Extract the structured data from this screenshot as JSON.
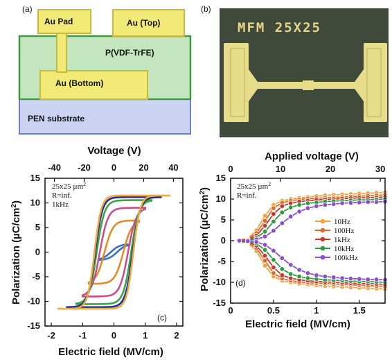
{
  "panels": {
    "a": {
      "letter": "(a)",
      "labels": {
        "au_pad": "Au Pad",
        "au_top": "Au (Top)",
        "pvdf": "P(VDF-TrFE)",
        "au_bottom": "Au (Bottom)",
        "pen": "PEN substrate"
      },
      "colors": {
        "gold": "#f2ea76",
        "gold_edge": "#c9b93a",
        "pvdf": "#c3e6be",
        "pvdf_edge": "#3f9a42",
        "pen": "#cbd3f0",
        "pen_edge": "#6b7fc9"
      }
    },
    "b": {
      "letter": "(b)",
      "photo_text": "MFM 25X25",
      "colors": {
        "background": "#3f4a3b",
        "electrode": "#e6dc8a"
      }
    },
    "c": {
      "letter": "(c)",
      "top_axis_title": "Voltage (V)",
      "top_ticks": [
        "-40",
        "-20",
        "0",
        "20",
        "40"
      ],
      "notes": [
        "25x25 µm",
        "R=inf.",
        "1kHz"
      ],
      "note_superscript": "2",
      "left_ticks": [
        "15",
        "10",
        "5",
        "0",
        "-5",
        "-10",
        "-15"
      ],
      "bottom_ticks": [
        "-2",
        "-1",
        "0",
        "1",
        "2"
      ]
    },
    "d": {
      "letter": "(d)",
      "top_axis_title": "Applied voltage (V)",
      "top_ticks": [
        "0",
        "10",
        "20",
        "30"
      ],
      "notes": [
        "25x25 µm",
        "R=inf."
      ],
      "note_superscript": "2",
      "left_ticks": [
        "15",
        "10",
        "5",
        "0",
        "-5",
        "-10",
        "-15"
      ],
      "bottom_ticks": [
        "0",
        "0.5",
        "1",
        "1.5"
      ]
    },
    "shared": {
      "ylabel": "Polarization (µC/cm",
      "ylabel_sup": "2",
      "ylabel_end": ")",
      "xlabel": "Electric field (MV/cm)"
    }
  },
  "chart_data": [
    {
      "type": "line",
      "panel": "c",
      "xlabel": "Electric field (MV/cm)",
      "ylabel": "Polarization (µC/cm2)",
      "top_axis_label": "Voltage (V)",
      "xlim": [
        -2.2,
        2.2
      ],
      "ylim": [
        -15,
        15
      ],
      "grid": false,
      "series": [
        {
          "amplitude": 0.5,
          "pr": 3.5,
          "ec": 0.1,
          "color": "#3a6fc4"
        },
        {
          "amplitude": 0.8,
          "pr": 7.5,
          "ec": 0.3,
          "color": "#e58a2a"
        },
        {
          "amplitude": 1.0,
          "pr": 9.0,
          "ec": 0.45,
          "color": "#c94f8a"
        },
        {
          "amplitude": 1.2,
          "pr": 9.8,
          "ec": 0.55,
          "color": "#3ea24a"
        },
        {
          "amplitude": 1.5,
          "pr": 10.2,
          "ec": 0.6,
          "color": "#1e2f8f"
        },
        {
          "amplitude": 1.8,
          "pr": 10.5,
          "ec": 0.62,
          "color": "#f0a840"
        }
      ]
    },
    {
      "type": "line",
      "panel": "d",
      "xlabel": "Electric field (MV/cm)",
      "ylabel": "Polarization (µC/cm2)",
      "top_axis_label": "Applied voltage (V)",
      "xlim": [
        0,
        1.8
      ],
      "ylim": [
        -15,
        15
      ],
      "grid": false,
      "legend_position": "right",
      "x": [
        0.1,
        0.2,
        0.3,
        0.4,
        0.5,
        0.6,
        0.7,
        0.8,
        0.9,
        1.0,
        1.1,
        1.2,
        1.3,
        1.4,
        1.5,
        1.6,
        1.7,
        1.8
      ],
      "series": [
        {
          "name": "10Hz",
          "color": "#f0a33a",
          "values": [
            0.2,
            0.5,
            2.5,
            6.0,
            8.6,
            9.6,
            10.0,
            10.3,
            10.5,
            10.7,
            10.9,
            11.0,
            11.1,
            11.2,
            11.3,
            11.4,
            11.5,
            11.6
          ]
        },
        {
          "name": "100Hz",
          "color": "#e06a2a",
          "values": [
            0.2,
            0.4,
            1.8,
            4.8,
            7.8,
            9.1,
            9.6,
            9.9,
            10.1,
            10.2,
            10.3,
            10.4,
            10.5,
            10.6,
            10.7,
            10.8,
            10.9,
            11.0
          ]
        },
        {
          "name": "1kHz",
          "color": "#c6372d",
          "values": [
            0.1,
            0.3,
            1.2,
            3.6,
            6.4,
            8.3,
            9.0,
            9.4,
            9.6,
            9.8,
            9.9,
            10.0,
            10.1,
            10.2,
            10.3,
            10.3,
            10.4,
            10.5
          ]
        },
        {
          "name": "10kHz",
          "color": "#2f9a40",
          "values": [
            0.1,
            0.2,
            0.7,
            2.2,
            4.6,
            6.8,
            8.0,
            8.6,
            9.0,
            9.2,
            9.4,
            9.5,
            9.6,
            9.7,
            9.8,
            9.8,
            9.9,
            10.0
          ]
        },
        {
          "name": "100kHz",
          "color": "#8a4fc9",
          "values": [
            0.0,
            0.1,
            0.3,
            1.0,
            2.4,
            4.2,
            5.8,
            7.0,
            7.8,
            8.3,
            8.6,
            8.8,
            9.0,
            9.1,
            9.2,
            9.3,
            9.3,
            9.4
          ]
        }
      ]
    }
  ]
}
